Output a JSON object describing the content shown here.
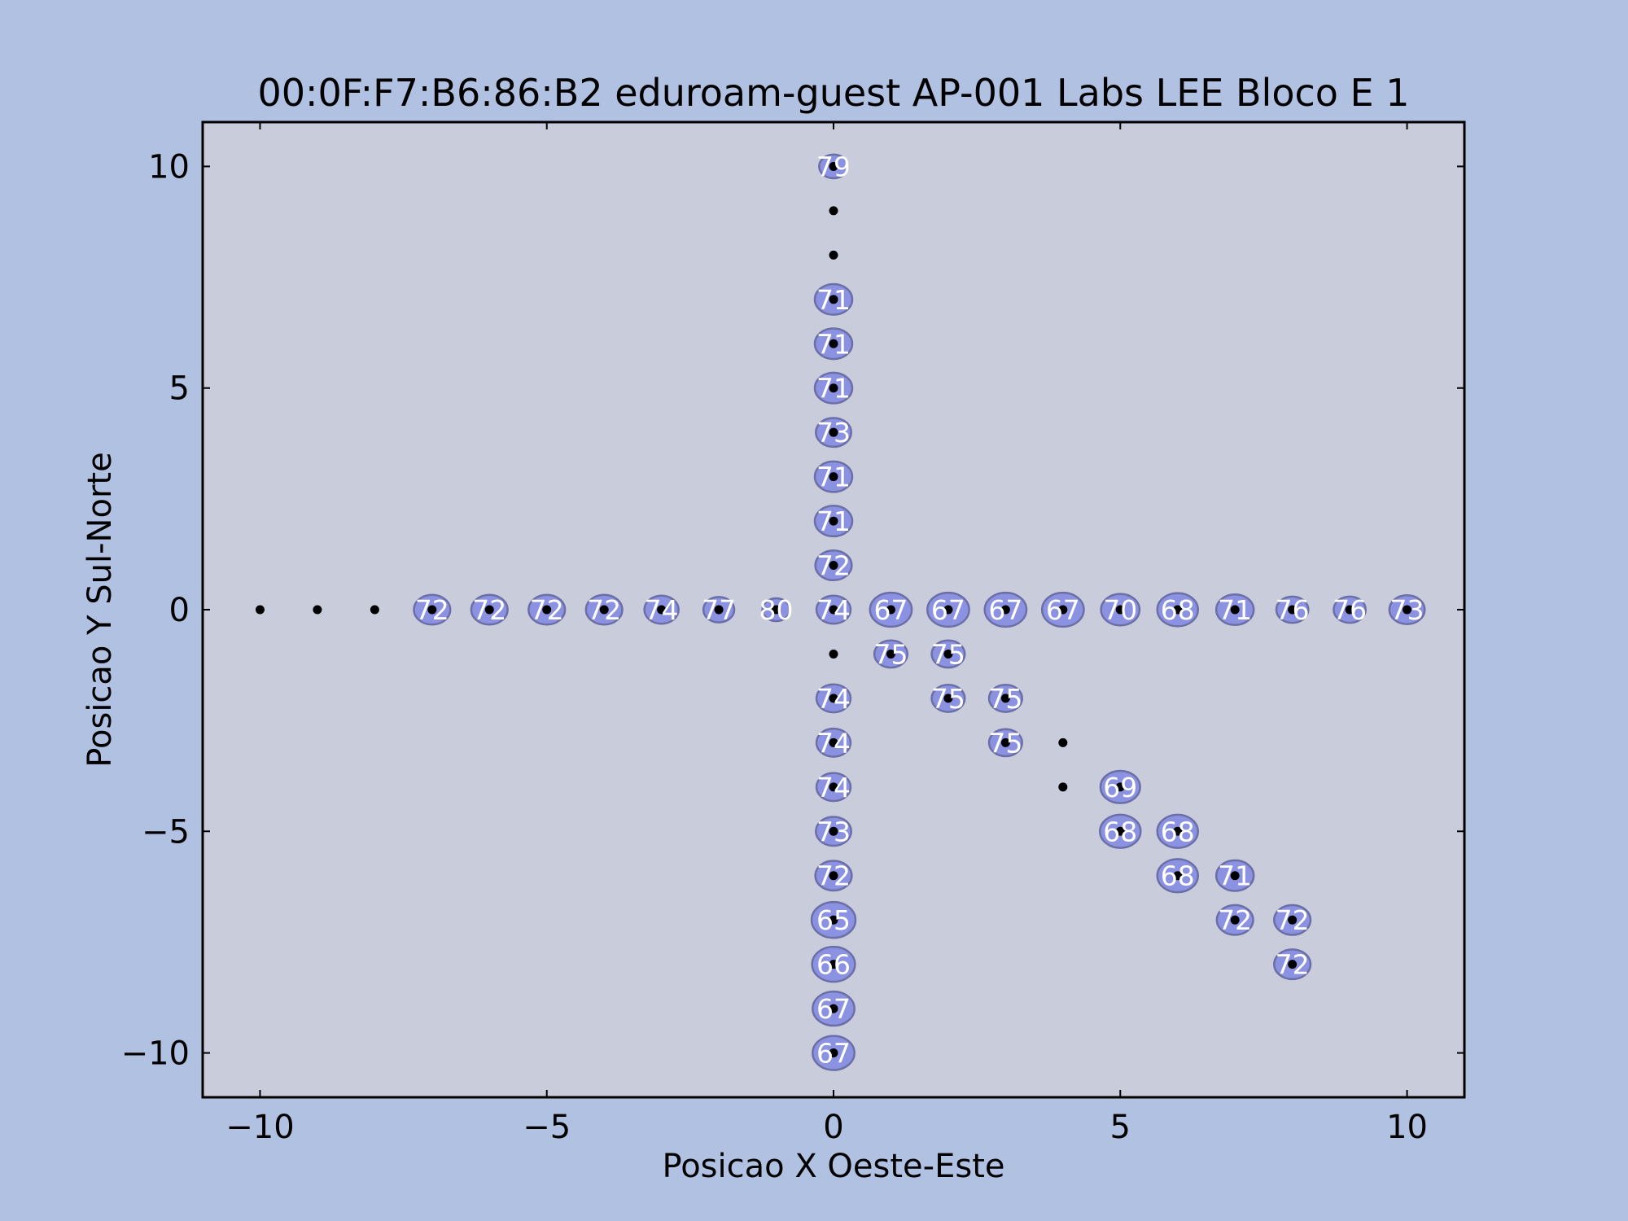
{
  "chart_data": {
    "type": "scatter",
    "title": "00:0F:F7:B6:86:B2 eduroam-guest AP-001 Labs LEE Bloco E    1",
    "xlabel": "Posicao X Oeste-Este",
    "ylabel": "Posicao Y Sul-Norte",
    "xlim": [
      -11,
      11
    ],
    "ylim": [
      -11,
      11
    ],
    "xticks": [
      -10,
      -5,
      0,
      5,
      10
    ],
    "yticks": [
      -10,
      -5,
      0,
      5,
      10
    ],
    "xtick_labels": [
      "−10",
      "−5",
      "0",
      "5",
      "10"
    ],
    "ytick_labels": [
      "−10",
      "−5",
      "0",
      "5",
      "10"
    ],
    "grid": false,
    "colors": {
      "figure_background": "#b0c1e1",
      "plot_background": "#c8ccdb",
      "marker": "#8c92e2",
      "marker_edge": "#6b6fa6",
      "point": "#000000",
      "label": "#ffffff"
    },
    "points": [
      {
        "x": -10,
        "y": 0,
        "value": null
      },
      {
        "x": -9,
        "y": 0,
        "value": null
      },
      {
        "x": -8,
        "y": 0,
        "value": null
      },
      {
        "x": -7,
        "y": 0,
        "value": 72
      },
      {
        "x": -6,
        "y": 0,
        "value": 72
      },
      {
        "x": -5,
        "y": 0,
        "value": 72
      },
      {
        "x": -4,
        "y": 0,
        "value": 72
      },
      {
        "x": -3,
        "y": 0,
        "value": 74
      },
      {
        "x": -2,
        "y": 0,
        "value": 77
      },
      {
        "x": -1,
        "y": 0,
        "value": 80
      },
      {
        "x": 0,
        "y": 0,
        "value": 74
      },
      {
        "x": 1,
        "y": 0,
        "value": 67
      },
      {
        "x": 2,
        "y": 0,
        "value": 67
      },
      {
        "x": 3,
        "y": 0,
        "value": 67
      },
      {
        "x": 4,
        "y": 0,
        "value": 67
      },
      {
        "x": 5,
        "y": 0,
        "value": 70
      },
      {
        "x": 6,
        "y": 0,
        "value": 68
      },
      {
        "x": 7,
        "y": 0,
        "value": 71
      },
      {
        "x": 8,
        "y": 0,
        "value": 76
      },
      {
        "x": 9,
        "y": 0,
        "value": 76
      },
      {
        "x": 10,
        "y": 0,
        "value": 73
      },
      {
        "x": 0,
        "y": 10,
        "value": 79
      },
      {
        "x": 0,
        "y": 9,
        "value": null
      },
      {
        "x": 0,
        "y": 8,
        "value": null
      },
      {
        "x": 0,
        "y": 7,
        "value": 71
      },
      {
        "x": 0,
        "y": 6,
        "value": 71
      },
      {
        "x": 0,
        "y": 5,
        "value": 71
      },
      {
        "x": 0,
        "y": 4,
        "value": 73
      },
      {
        "x": 0,
        "y": 3,
        "value": 71
      },
      {
        "x": 0,
        "y": 2,
        "value": 71
      },
      {
        "x": 0,
        "y": 1,
        "value": 72
      },
      {
        "x": 0,
        "y": -1,
        "value": null
      },
      {
        "x": 0,
        "y": -2,
        "value": 74
      },
      {
        "x": 0,
        "y": -3,
        "value": 74
      },
      {
        "x": 0,
        "y": -4,
        "value": 74
      },
      {
        "x": 0,
        "y": -5,
        "value": 73
      },
      {
        "x": 0,
        "y": -6,
        "value": 72
      },
      {
        "x": 0,
        "y": -7,
        "value": 65
      },
      {
        "x": 0,
        "y": -8,
        "value": 66
      },
      {
        "x": 0,
        "y": -9,
        "value": 67
      },
      {
        "x": 0,
        "y": -10,
        "value": 67
      },
      {
        "x": 1,
        "y": -1,
        "value": 75
      },
      {
        "x": 2,
        "y": -1,
        "value": 75
      },
      {
        "x": 2,
        "y": -2,
        "value": 75
      },
      {
        "x": 3,
        "y": -2,
        "value": 75
      },
      {
        "x": 3,
        "y": -3,
        "value": 75
      },
      {
        "x": 4,
        "y": -3,
        "value": null
      },
      {
        "x": 4,
        "y": -4,
        "value": null
      },
      {
        "x": 5,
        "y": -4,
        "value": 69
      },
      {
        "x": 5,
        "y": -5,
        "value": 68
      },
      {
        "x": 6,
        "y": -5,
        "value": 68
      },
      {
        "x": 6,
        "y": -6,
        "value": 68
      },
      {
        "x": 7,
        "y": -6,
        "value": 71
      },
      {
        "x": 7,
        "y": -7,
        "value": 72
      },
      {
        "x": 8,
        "y": -7,
        "value": 72
      },
      {
        "x": 8,
        "y": -8,
        "value": 72
      }
    ]
  }
}
